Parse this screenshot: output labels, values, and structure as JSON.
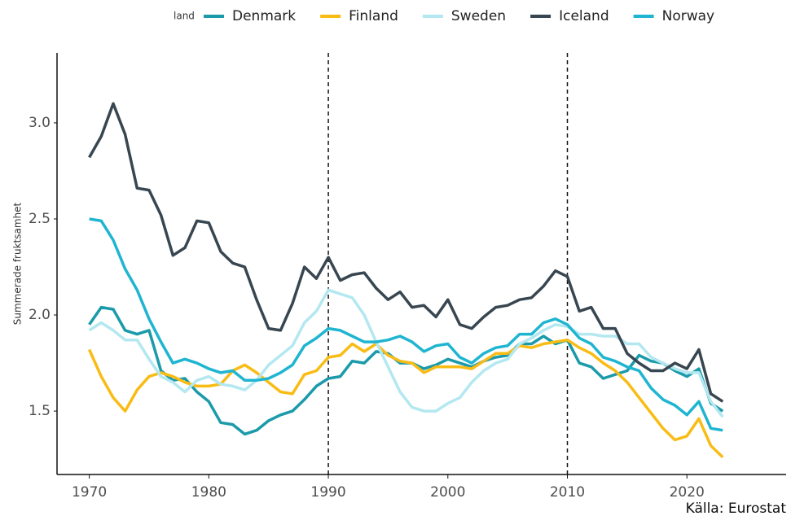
{
  "chart_data": {
    "type": "line",
    "legend_title": "land",
    "ylabel": "Summerade fruktsamhet",
    "source": "Källa: Eurostat",
    "x": [
      1970,
      1971,
      1972,
      1973,
      1974,
      1975,
      1976,
      1977,
      1978,
      1979,
      1980,
      1981,
      1982,
      1983,
      1984,
      1985,
      1986,
      1987,
      1988,
      1989,
      1990,
      1991,
      1992,
      1993,
      1994,
      1995,
      1996,
      1997,
      1998,
      1999,
      2000,
      2001,
      2002,
      2003,
      2004,
      2005,
      2006,
      2007,
      2008,
      2009,
      2010,
      2011,
      2012,
      2013,
      2014,
      2015,
      2016,
      2017,
      2018,
      2019,
      2020,
      2021,
      2022,
      2023
    ],
    "series": [
      {
        "name": "Denmark",
        "color": "#1b9aaa",
        "values": [
          1.95,
          2.04,
          2.03,
          1.92,
          1.9,
          1.92,
          1.71,
          1.66,
          1.67,
          1.6,
          1.55,
          1.44,
          1.43,
          1.38,
          1.4,
          1.45,
          1.48,
          1.5,
          1.56,
          1.63,
          1.67,
          1.68,
          1.76,
          1.75,
          1.81,
          1.8,
          1.75,
          1.75,
          1.72,
          1.74,
          1.77,
          1.75,
          1.73,
          1.76,
          1.78,
          1.79,
          1.85,
          1.85,
          1.89,
          1.85,
          1.87,
          1.75,
          1.73,
          1.67,
          1.69,
          1.71,
          1.79,
          1.76,
          1.75,
          1.71,
          1.68,
          1.72,
          1.54,
          1.5
        ]
      },
      {
        "name": "Finland",
        "color": "#f9bc15",
        "values": [
          1.82,
          1.68,
          1.57,
          1.5,
          1.61,
          1.68,
          1.7,
          1.68,
          1.65,
          1.63,
          1.63,
          1.64,
          1.71,
          1.74,
          1.7,
          1.65,
          1.6,
          1.59,
          1.69,
          1.71,
          1.78,
          1.79,
          1.85,
          1.81,
          1.85,
          1.79,
          1.76,
          1.75,
          1.7,
          1.73,
          1.73,
          1.73,
          1.72,
          1.76,
          1.8,
          1.8,
          1.84,
          1.83,
          1.85,
          1.86,
          1.87,
          1.83,
          1.8,
          1.75,
          1.71,
          1.65,
          1.57,
          1.49,
          1.41,
          1.35,
          1.37,
          1.46,
          1.32,
          1.26
        ]
      },
      {
        "name": "Sweden",
        "color": "#b3e8f0",
        "values": [
          1.92,
          1.96,
          1.92,
          1.87,
          1.87,
          1.77,
          1.68,
          1.65,
          1.6,
          1.66,
          1.68,
          1.64,
          1.63,
          1.61,
          1.66,
          1.74,
          1.79,
          1.84,
          1.96,
          2.02,
          2.13,
          2.11,
          2.09,
          2.0,
          1.86,
          1.73,
          1.6,
          1.52,
          1.5,
          1.5,
          1.54,
          1.57,
          1.65,
          1.71,
          1.75,
          1.77,
          1.85,
          1.88,
          1.92,
          1.95,
          1.94,
          1.9,
          1.9,
          1.89,
          1.89,
          1.85,
          1.85,
          1.78,
          1.75,
          1.72,
          1.7,
          1.7,
          1.55,
          1.47
        ]
      },
      {
        "name": "Iceland",
        "color": "#374650",
        "values": [
          2.82,
          2.93,
          3.1,
          2.94,
          2.66,
          2.65,
          2.52,
          2.31,
          2.35,
          2.49,
          2.48,
          2.33,
          2.27,
          2.25,
          2.08,
          1.93,
          1.92,
          2.06,
          2.25,
          2.19,
          2.3,
          2.18,
          2.21,
          2.22,
          2.14,
          2.08,
          2.12,
          2.04,
          2.05,
          1.99,
          2.08,
          1.95,
          1.93,
          1.99,
          2.04,
          2.05,
          2.08,
          2.09,
          2.15,
          2.23,
          2.2,
          2.02,
          2.04,
          1.93,
          1.93,
          1.8,
          1.75,
          1.71,
          1.71,
          1.75,
          1.72,
          1.82,
          1.59,
          1.55
        ]
      },
      {
        "name": "Norway",
        "color": "#1fb5d1",
        "values": [
          2.5,
          2.49,
          2.39,
          2.24,
          2.13,
          1.98,
          1.86,
          1.75,
          1.77,
          1.75,
          1.72,
          1.7,
          1.71,
          1.66,
          1.66,
          1.67,
          1.7,
          1.74,
          1.84,
          1.88,
          1.93,
          1.92,
          1.89,
          1.86,
          1.86,
          1.87,
          1.89,
          1.86,
          1.81,
          1.84,
          1.85,
          1.78,
          1.75,
          1.8,
          1.83,
          1.84,
          1.9,
          1.9,
          1.96,
          1.98,
          1.95,
          1.88,
          1.85,
          1.78,
          1.76,
          1.73,
          1.71,
          1.62,
          1.56,
          1.53,
          1.48,
          1.55,
          1.41,
          1.4
        ]
      }
    ],
    "vlines": [
      1990,
      2010
    ],
    "xlim": [
      1967.3,
      2028.3
    ],
    "ylim": [
      1.17,
      3.364
    ],
    "xticks": [
      1970,
      1980,
      1990,
      2000,
      2010,
      2020
    ],
    "yticks": [
      1.5,
      {
        "value": 2,
        "label": "2.0"
      },
      2.5,
      {
        "value": 3,
        "label": "3.0"
      }
    ],
    "grid": false
  }
}
